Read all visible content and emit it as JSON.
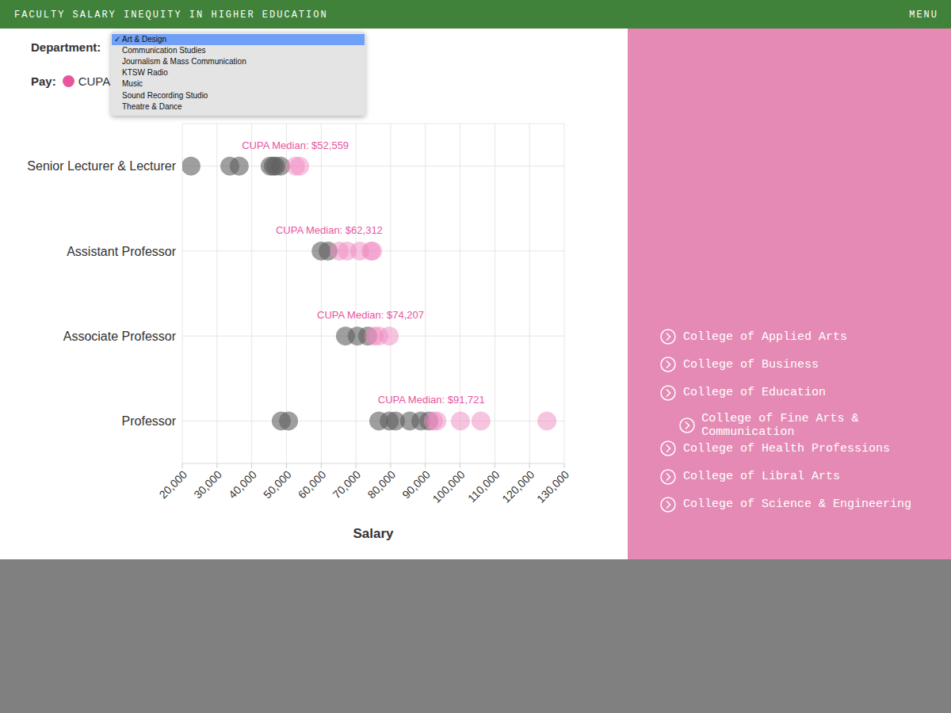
{
  "page": {
    "header_title": "FACULTY SALARY INEQUITY IN HIGHER EDUCATION",
    "menu": "MENU",
    "department_label": "Department:",
    "pay_label": "Pay:",
    "dropdown": {
      "selected_mark": "✓",
      "selected": 0,
      "options": [
        "Art & Design",
        "Communication Studies",
        "Journalism & Mass Communication",
        "KTSW Radio",
        "Music",
        "Sound Recording Studio",
        "Theatre & Dance"
      ]
    },
    "sidebar": {
      "active": 3,
      "links": [
        "College of Applied Arts",
        "College of Business",
        "College of Education",
        "College of Fine Arts & Communication",
        "College of Health Professions",
        "College of Libral Arts",
        "College of Science & Engineering"
      ]
    }
  },
  "chart_data": {
    "type": "scatter",
    "x_label": "Salary",
    "categories": [
      "Senior Lecturer & Lecturer",
      "Assistant Professor",
      "Associate Professor",
      "Professor"
    ],
    "xlim": [
      20000,
      130000
    ],
    "xticks": [
      {
        "value": 20000,
        "label": "20,000"
      },
      {
        "value": 30000,
        "label": "30,000"
      },
      {
        "value": 40000,
        "label": "40,000"
      },
      {
        "value": 50000,
        "label": "50,000"
      },
      {
        "value": 60000,
        "label": "60,000"
      },
      {
        "value": 70000,
        "label": "70,000"
      },
      {
        "value": 80000,
        "label": "80,000"
      },
      {
        "value": 90000,
        "label": "90,000"
      },
      {
        "value": 100000,
        "label": "100,000"
      },
      {
        "value": 110000,
        "label": "110,000"
      },
      {
        "value": 120000,
        "label": "120,000"
      },
      {
        "value": 130000,
        "label": "130,000"
      }
    ],
    "grid": true,
    "legend": "upper left",
    "series": [
      {
        "color": "#5f5f5f",
        "x": [
          22500,
          33700,
          36400,
          45300,
          46200,
          46900,
          48300,
          60000,
          62000,
          67000,
          70400,
          73400,
          48500,
          50600,
          76600,
          79600,
          81400,
          85500,
          88700,
          91000
        ],
        "y": [
          "Senior Lecturer & Lecturer",
          "Senior Lecturer & Lecturer",
          "Senior Lecturer & Lecturer",
          "Senior Lecturer & Lecturer",
          "Senior Lecturer & Lecturer",
          "Senior Lecturer & Lecturer",
          "Senior Lecturer & Lecturer",
          "Assistant Professor",
          "Assistant Professor",
          "Associate Professor",
          "Associate Professor",
          "Associate Professor",
          "Professor",
          "Professor",
          "Professor",
          "Professor",
          "Professor",
          "Professor",
          "Professor",
          "Professor"
        ]
      },
      {
        "name": "CUPA",
        "color": "#f08ac2",
        "x": [
          52600,
          53800,
          65200,
          67500,
          71100,
          74300,
          74800,
          75200,
          76600,
          79600,
          92300,
          93300,
          100100,
          106000,
          125000
        ],
        "y": [
          "Senior Lecturer & Lecturer",
          "Senior Lecturer & Lecturer",
          "Assistant Professor",
          "Assistant Professor",
          "Assistant Professor",
          "Assistant Professor",
          "Assistant Professor",
          "Associate Professor",
          "Associate Professor",
          "Associate Professor",
          "Professor",
          "Professor",
          "Professor",
          "Professor",
          "Professor"
        ]
      }
    ],
    "annotations": [
      {
        "text": "CUPA Median: $52,559",
        "x": 52559,
        "y": "Senior Lecturer & Lecturer"
      },
      {
        "text": "CUPA Median: $62,312",
        "x": 62312,
        "y": "Assistant Professor"
      },
      {
        "text": "CUPA Median: $74,207",
        "x": 74207,
        "y": "Associate Professor"
      },
      {
        "text": "CUPA Median: $91,721",
        "x": 91721,
        "y": "Professor"
      }
    ]
  }
}
